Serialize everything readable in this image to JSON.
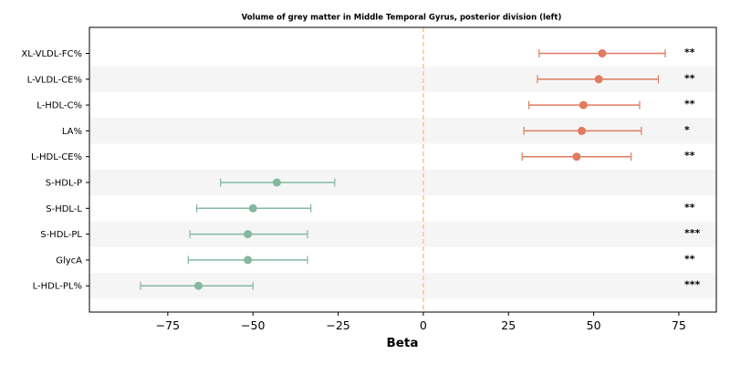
{
  "chart_data": {
    "type": "scatter",
    "title": "Volume of grey matter in Middle Temporal Gyrus, posterior division (left)",
    "xlabel": "Beta",
    "ylabel": "",
    "xlim": [
      -98,
      86
    ],
    "x_ticks": [
      -75,
      -50,
      -25,
      0,
      25,
      50,
      75
    ],
    "x_tick_labels": [
      "−75",
      "−50",
      "−25",
      "0",
      "25",
      "50",
      "75"
    ],
    "reference_line": 0,
    "grid": false,
    "row_banding": true,
    "colors": {
      "positive": "#e07b5f",
      "negative": "#85b8a0",
      "reference": "#f5c88a",
      "band": "#f5f5f5"
    },
    "points": [
      {
        "label": "XL-VLDL-FC%",
        "beta": 52.5,
        "low": 34,
        "high": 71,
        "sig": "**"
      },
      {
        "label": "L-VLDL-CE%",
        "beta": 51.5,
        "low": 33.5,
        "high": 69,
        "sig": "**"
      },
      {
        "label": "L-HDL-C%",
        "beta": 47,
        "low": 31,
        "high": 63.5,
        "sig": "**"
      },
      {
        "label": "LA%",
        "beta": 46.5,
        "low": 29.5,
        "high": 64,
        "sig": "*"
      },
      {
        "label": "L-HDL-CE%",
        "beta": 45,
        "low": 29,
        "high": 61,
        "sig": "**"
      },
      {
        "label": "S-HDL-P",
        "beta": -43,
        "low": -59.5,
        "high": -26,
        "sig": ""
      },
      {
        "label": "S-HDL-L",
        "beta": -50,
        "low": -66.5,
        "high": -33,
        "sig": "**"
      },
      {
        "label": "S-HDL-PL",
        "beta": -51.5,
        "low": -68.5,
        "high": -34,
        "sig": "***"
      },
      {
        "label": "GlycA",
        "beta": -51.5,
        "low": -69,
        "high": -34,
        "sig": "**"
      },
      {
        "label": "L-HDL-PL%",
        "beta": -66,
        "low": -83,
        "high": -50,
        "sig": "***"
      }
    ]
  }
}
